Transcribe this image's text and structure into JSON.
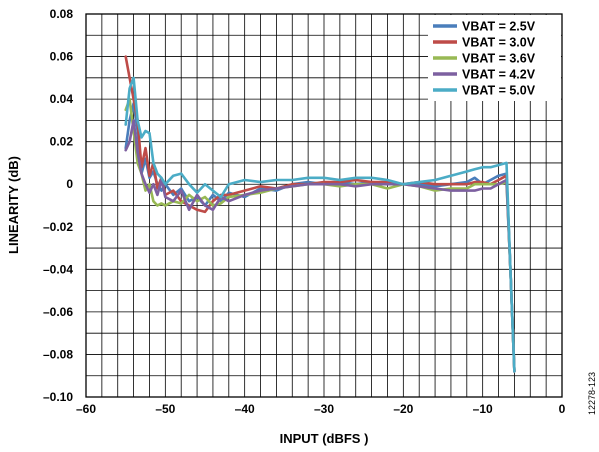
{
  "figure_id": "12278-123",
  "chart_data": {
    "type": "line",
    "title": "",
    "xlabel": "INPUT (dBFS )",
    "ylabel": "LINEARITY (dB)",
    "xlim": [
      -60,
      0
    ],
    "ylim": [
      -0.1,
      0.08
    ],
    "xticks": [
      -60,
      -50,
      -40,
      -30,
      -20,
      -10,
      0
    ],
    "xtick_labels": [
      "–60",
      "–50",
      "–40",
      "–30",
      "–20",
      "–10",
      "0"
    ],
    "yticks": [
      0.08,
      0.06,
      0.04,
      0.02,
      0,
      -0.02,
      -0.04,
      -0.06,
      -0.08,
      -0.1
    ],
    "ytick_labels": [
      "0.08",
      "0.06",
      "0.04",
      "0.02",
      "0",
      "–0.02",
      "–0.04",
      "–0.06",
      "–0.08",
      "–0.10"
    ],
    "grid": true,
    "legend_position": "top-right",
    "series": [
      {
        "name": "VBAT = 2.5V",
        "color": "#4a7ebb",
        "x": [
          -55,
          -54.5,
          -54,
          -53.5,
          -53,
          -52.5,
          -52,
          -51.5,
          -51,
          -50.5,
          -50,
          -49,
          -48,
          -47,
          -46,
          -45,
          -44,
          -43,
          -42,
          -40,
          -38,
          -36,
          -34,
          -32,
          -30,
          -28,
          -26,
          -24,
          -22,
          -20,
          -18,
          -16,
          -14,
          -12,
          -11,
          -10,
          -9,
          -8,
          -7,
          -6.5,
          -6
        ],
        "y": [
          0.017,
          0.03,
          0.038,
          0.025,
          0.005,
          0.012,
          0.003,
          0.006,
          0.0,
          -0.003,
          0.0,
          -0.005,
          -0.002,
          -0.008,
          -0.006,
          -0.01,
          -0.005,
          -0.008,
          -0.004,
          -0.006,
          -0.002,
          -0.003,
          0.0,
          0.001,
          0.0,
          0.001,
          0.0,
          0.001,
          0.0,
          0.0,
          0.0,
          -0.001,
          0.0,
          0.001,
          0.003,
          0.0,
          0.002,
          0.004,
          0.005,
          -0.04,
          -0.088
        ]
      },
      {
        "name": "VBAT = 3.0V",
        "color": "#be4b48",
        "x": [
          -55,
          -54.5,
          -54,
          -53.5,
          -53,
          -52.5,
          -52,
          -51.5,
          -51,
          -50.5,
          -50,
          -49,
          -48,
          -47,
          -46,
          -45,
          -44,
          -43,
          -42,
          -40,
          -38,
          -36,
          -34,
          -32,
          -30,
          -28,
          -26,
          -24,
          -22,
          -20,
          -18,
          -16,
          -14,
          -12,
          -11,
          -10,
          -9,
          -8,
          -7,
          -6.5,
          -6
        ],
        "y": [
          0.06,
          0.05,
          0.04,
          0.03,
          0.008,
          0.017,
          0.004,
          0.01,
          -0.002,
          0.003,
          -0.005,
          -0.003,
          -0.008,
          -0.01,
          -0.012,
          -0.013,
          -0.008,
          -0.005,
          -0.005,
          -0.003,
          -0.001,
          -0.002,
          0.0,
          0.0,
          0.001,
          0.001,
          0.002,
          0.001,
          0.001,
          0.0,
          0.001,
          0.0,
          0.0,
          0.0,
          0.001,
          0.001,
          0.0,
          0.002,
          0.004,
          -0.04,
          -0.088
        ]
      },
      {
        "name": "VBAT = 3.6V",
        "color": "#98b954",
        "x": [
          -55,
          -54.5,
          -54,
          -53.5,
          -53,
          -52.5,
          -52,
          -51.5,
          -51,
          -50.5,
          -50,
          -49,
          -48,
          -47,
          -46,
          -45,
          -44,
          -43,
          -42,
          -40,
          -38,
          -36,
          -34,
          -32,
          -30,
          -28,
          -26,
          -24,
          -22,
          -20,
          -18,
          -16,
          -14,
          -12,
          -11,
          -10,
          -9,
          -8,
          -7,
          -6.5,
          -6
        ],
        "y": [
          0.035,
          0.04,
          0.025,
          0.01,
          0.005,
          -0.003,
          0.0,
          -0.008,
          -0.01,
          -0.009,
          -0.01,
          -0.008,
          -0.009,
          -0.005,
          -0.008,
          -0.006,
          -0.01,
          -0.009,
          -0.006,
          -0.005,
          -0.004,
          -0.002,
          -0.001,
          0.0,
          0.0,
          -0.001,
          0.0,
          0.0,
          -0.002,
          0.0,
          -0.001,
          -0.003,
          -0.002,
          -0.002,
          0.0,
          0.0,
          0.0,
          0.0,
          0.001,
          -0.04,
          -0.088
        ]
      },
      {
        "name": "VBAT = 4.2V",
        "color": "#7d60a0",
        "x": [
          -55,
          -54.5,
          -54,
          -53.5,
          -53,
          -52.5,
          -52,
          -51.5,
          -51,
          -50.5,
          -50,
          -49,
          -48,
          -47,
          -46,
          -45,
          -44,
          -43,
          -42,
          -40,
          -38,
          -36,
          -34,
          -32,
          -30,
          -28,
          -26,
          -24,
          -22,
          -20,
          -18,
          -16,
          -14,
          -12,
          -11,
          -10,
          -9,
          -8,
          -7,
          -6.5,
          -6
        ],
        "y": [
          0.016,
          0.02,
          0.03,
          0.015,
          0.005,
          0.0,
          -0.004,
          0.0,
          -0.005,
          0.002,
          -0.006,
          -0.008,
          -0.003,
          -0.012,
          -0.005,
          -0.01,
          -0.012,
          -0.006,
          -0.008,
          -0.005,
          -0.003,
          -0.002,
          -0.001,
          0.0,
          0.0,
          0.0,
          -0.001,
          0.0,
          0.0,
          0.0,
          -0.001,
          -0.002,
          -0.003,
          -0.003,
          -0.003,
          -0.002,
          -0.002,
          0.0,
          0.002,
          -0.04,
          -0.088
        ]
      },
      {
        "name": "VBAT = 5.0V",
        "color": "#4bacc6",
        "x": [
          -55,
          -54.5,
          -54,
          -53.5,
          -53,
          -52.5,
          -52,
          -51.5,
          -51,
          -50.5,
          -50,
          -49,
          -48,
          -47,
          -46,
          -45,
          -44,
          -43,
          -42,
          -40,
          -38,
          -36,
          -34,
          -32,
          -30,
          -28,
          -26,
          -24,
          -22,
          -20,
          -18,
          -16,
          -14,
          -12,
          -11,
          -10,
          -9,
          -8,
          -7,
          -6.5,
          -6
        ],
        "y": [
          0.028,
          0.045,
          0.05,
          0.03,
          0.022,
          0.025,
          0.024,
          0.01,
          0.005,
          0.003,
          0.0,
          0.004,
          0.005,
          0.0,
          -0.004,
          0.0,
          -0.003,
          -0.006,
          0.0,
          0.002,
          0.001,
          0.002,
          0.002,
          0.003,
          0.003,
          0.002,
          0.003,
          0.003,
          0.002,
          0.0,
          0.001,
          0.002,
          0.004,
          0.006,
          0.007,
          0.008,
          0.008,
          0.009,
          0.01,
          -0.04,
          -0.088
        ]
      }
    ]
  }
}
